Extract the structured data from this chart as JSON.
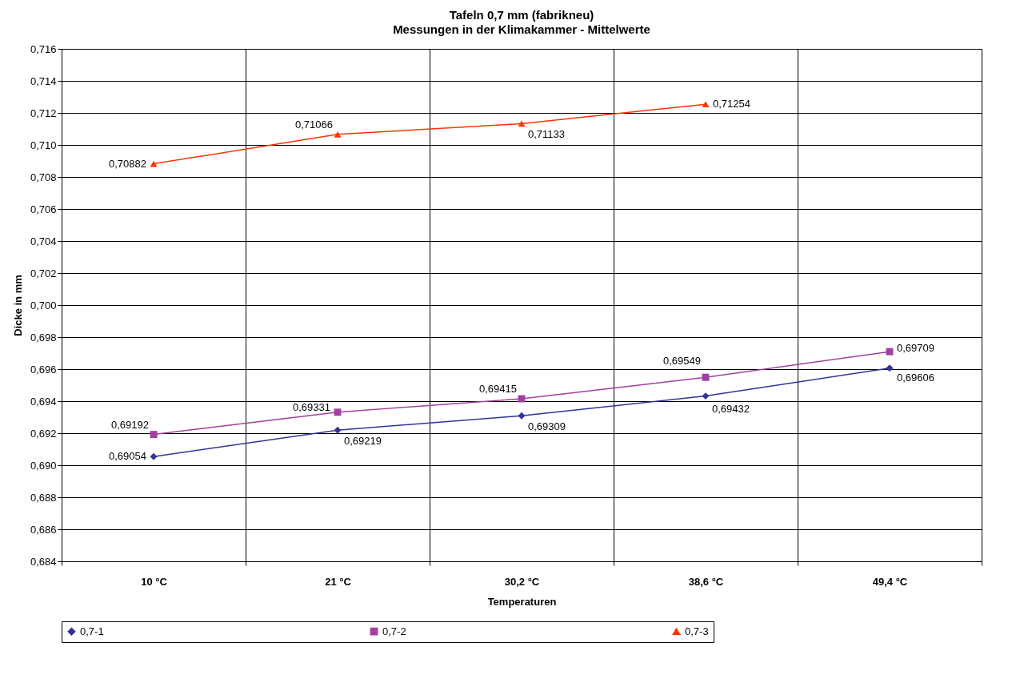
{
  "chart_data": {
    "type": "line",
    "title": "Tafeln 0,7 mm   (fabrikneu)",
    "subtitle": "Messungen in der Klimakammer  -  Mittelwerte",
    "xlabel": "Temperaturen",
    "ylabel": "Dicke in mm",
    "categories": [
      "10 °C",
      "21 °C",
      "30,2 °C",
      "38,6 °C",
      "49,4 °C"
    ],
    "series": [
      {
        "name": "0,7-1",
        "color": "#333399",
        "marker": "diamond",
        "values": [
          0.69054,
          0.69219,
          0.69309,
          0.69432,
          0.69606
        ],
        "value_labels": [
          "0,69054",
          "0,69219",
          "0,69309",
          "0,69432",
          "0,69606"
        ]
      },
      {
        "name": "0,7-2",
        "color": "#a0409f",
        "marker": "square",
        "values": [
          0.69192,
          0.69331,
          0.69415,
          0.69549,
          0.69709
        ],
        "value_labels": [
          "0,69192",
          "0,69331",
          "0,69415",
          "0,69549",
          "0,69709"
        ]
      },
      {
        "name": "0,7-3",
        "color": "#ff3300",
        "marker": "triangle",
        "values": [
          0.70882,
          0.71066,
          0.71133,
          0.71254,
          null
        ],
        "value_labels": [
          "0,70882",
          "0,71066",
          "0,71133",
          "0,71254",
          null
        ]
      }
    ],
    "ylim": [
      0.684,
      0.716
    ],
    "yticks": [
      {
        "value": 0.684,
        "label": "0,684"
      },
      {
        "value": 0.686,
        "label": "0,686"
      },
      {
        "value": 0.688,
        "label": "0,688"
      },
      {
        "value": 0.69,
        "label": "0,690"
      },
      {
        "value": 0.692,
        "label": "0,692"
      },
      {
        "value": 0.694,
        "label": "0,694"
      },
      {
        "value": 0.696,
        "label": "0,696"
      },
      {
        "value": 0.698,
        "label": "0,698"
      },
      {
        "value": 0.7,
        "label": "0,700"
      },
      {
        "value": 0.702,
        "label": "0,702"
      },
      {
        "value": 0.704,
        "label": "0,704"
      },
      {
        "value": 0.706,
        "label": "0,706"
      },
      {
        "value": 0.708,
        "label": "0,708"
      },
      {
        "value": 0.71,
        "label": "0,710"
      },
      {
        "value": 0.712,
        "label": "0,712"
      },
      {
        "value": 0.714,
        "label": "0,714"
      },
      {
        "value": 0.716,
        "label": "0,716"
      }
    ],
    "grid": true,
    "legend": "bottom",
    "line_style": "solid"
  }
}
